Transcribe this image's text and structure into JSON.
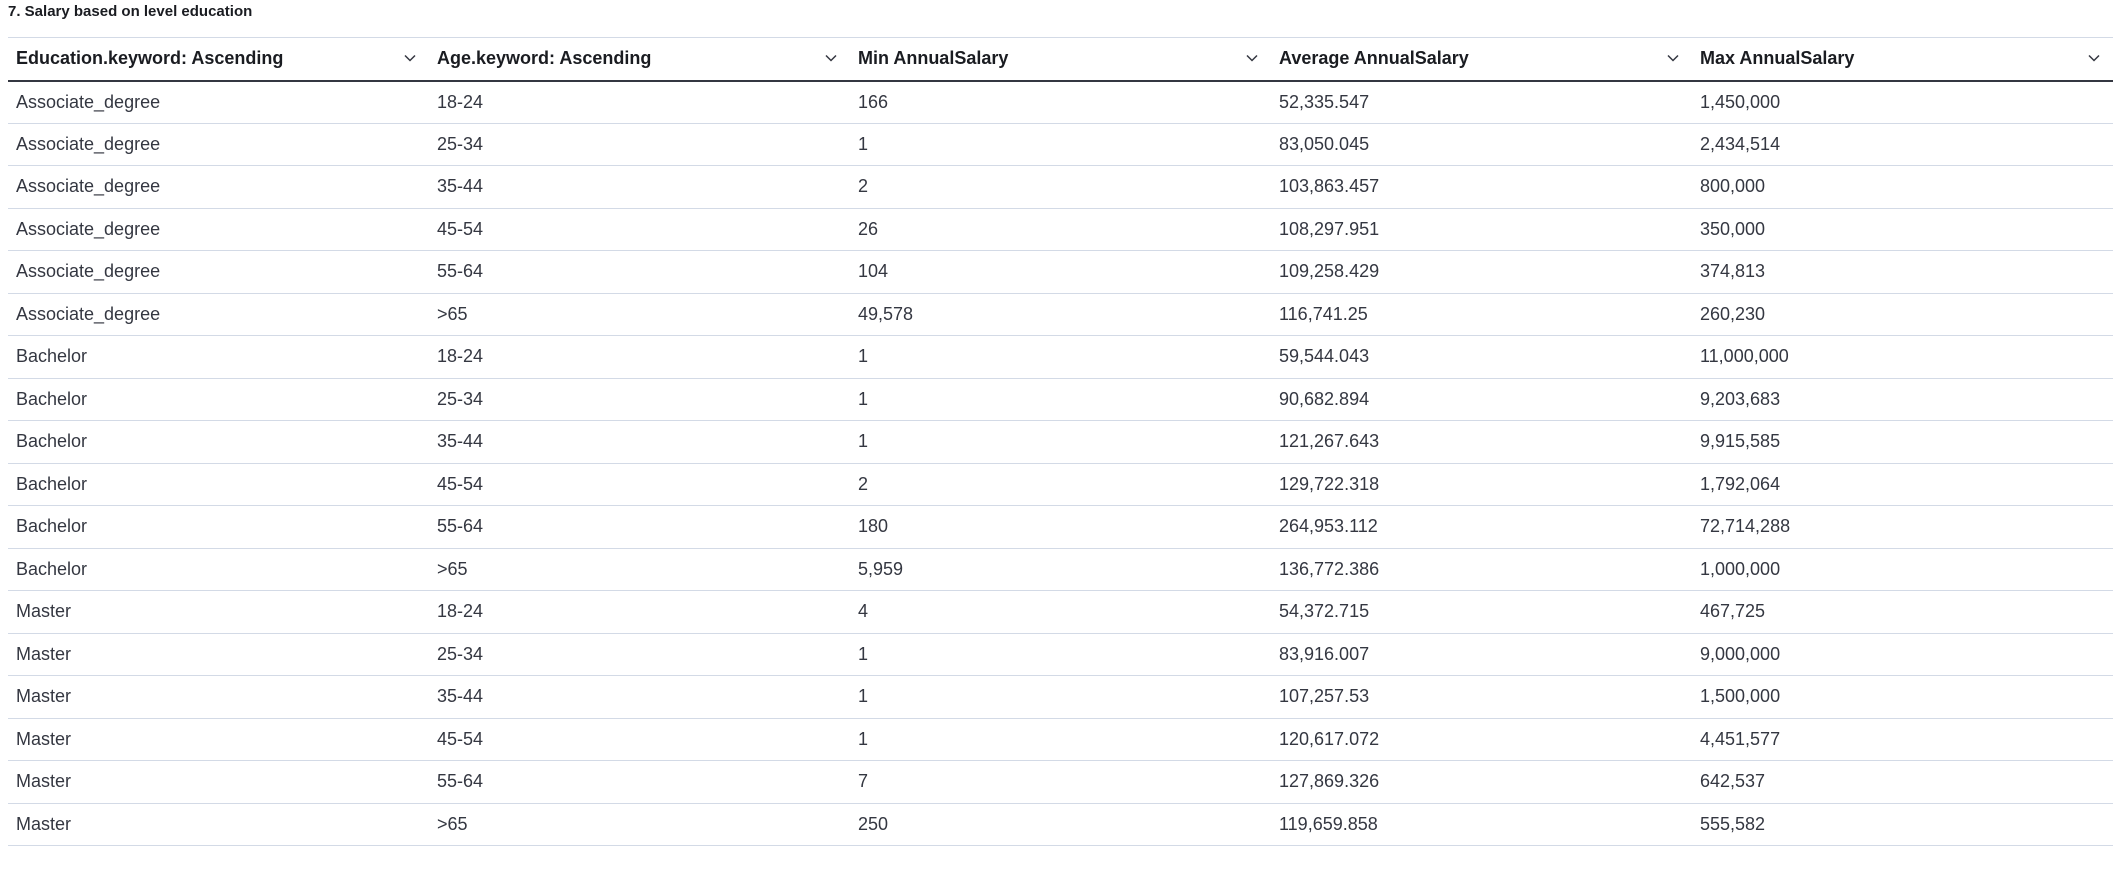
{
  "panel": {
    "title": "7. Salary based on level education"
  },
  "table": {
    "columns": [
      {
        "label": "Education.keyword: Ascending",
        "sort_icon": "chevron-down-icon"
      },
      {
        "label": "Age.keyword: Ascending",
        "sort_icon": "chevron-down-icon"
      },
      {
        "label": "Min AnnualSalary",
        "sort_icon": "chevron-down-icon"
      },
      {
        "label": "Average AnnualSalary",
        "sort_icon": "chevron-down-icon"
      },
      {
        "label": "Max AnnualSalary",
        "sort_icon": "chevron-down-icon"
      }
    ],
    "rows": [
      [
        "Associate_degree",
        "18-24",
        "166",
        "52,335.547",
        "1,450,000"
      ],
      [
        "Associate_degree",
        "25-34",
        "1",
        "83,050.045",
        "2,434,514"
      ],
      [
        "Associate_degree",
        "35-44",
        "2",
        "103,863.457",
        "800,000"
      ],
      [
        "Associate_degree",
        "45-54",
        "26",
        "108,297.951",
        "350,000"
      ],
      [
        "Associate_degree",
        "55-64",
        "104",
        "109,258.429",
        "374,813"
      ],
      [
        "Associate_degree",
        ">65",
        "49,578",
        "116,741.25",
        "260,230"
      ],
      [
        "Bachelor",
        "18-24",
        "1",
        "59,544.043",
        "11,000,000"
      ],
      [
        "Bachelor",
        "25-34",
        "1",
        "90,682.894",
        "9,203,683"
      ],
      [
        "Bachelor",
        "35-44",
        "1",
        "121,267.643",
        "9,915,585"
      ],
      [
        "Bachelor",
        "45-54",
        "2",
        "129,722.318",
        "1,792,064"
      ],
      [
        "Bachelor",
        "55-64",
        "180",
        "264,953.112",
        "72,714,288"
      ],
      [
        "Bachelor",
        ">65",
        "5,959",
        "136,772.386",
        "1,000,000"
      ],
      [
        "Master",
        "18-24",
        "4",
        "54,372.715",
        "467,725"
      ],
      [
        "Master",
        "25-34",
        "1",
        "83,916.007",
        "9,000,000"
      ],
      [
        "Master",
        "35-44",
        "1",
        "107,257.53",
        "1,500,000"
      ],
      [
        "Master",
        "45-54",
        "1",
        "120,617.072",
        "4,451,577"
      ],
      [
        "Master",
        "55-64",
        "7",
        "127,869.326",
        "642,537"
      ],
      [
        "Master",
        ">65",
        "250",
        "119,659.858",
        "555,582"
      ]
    ]
  }
}
